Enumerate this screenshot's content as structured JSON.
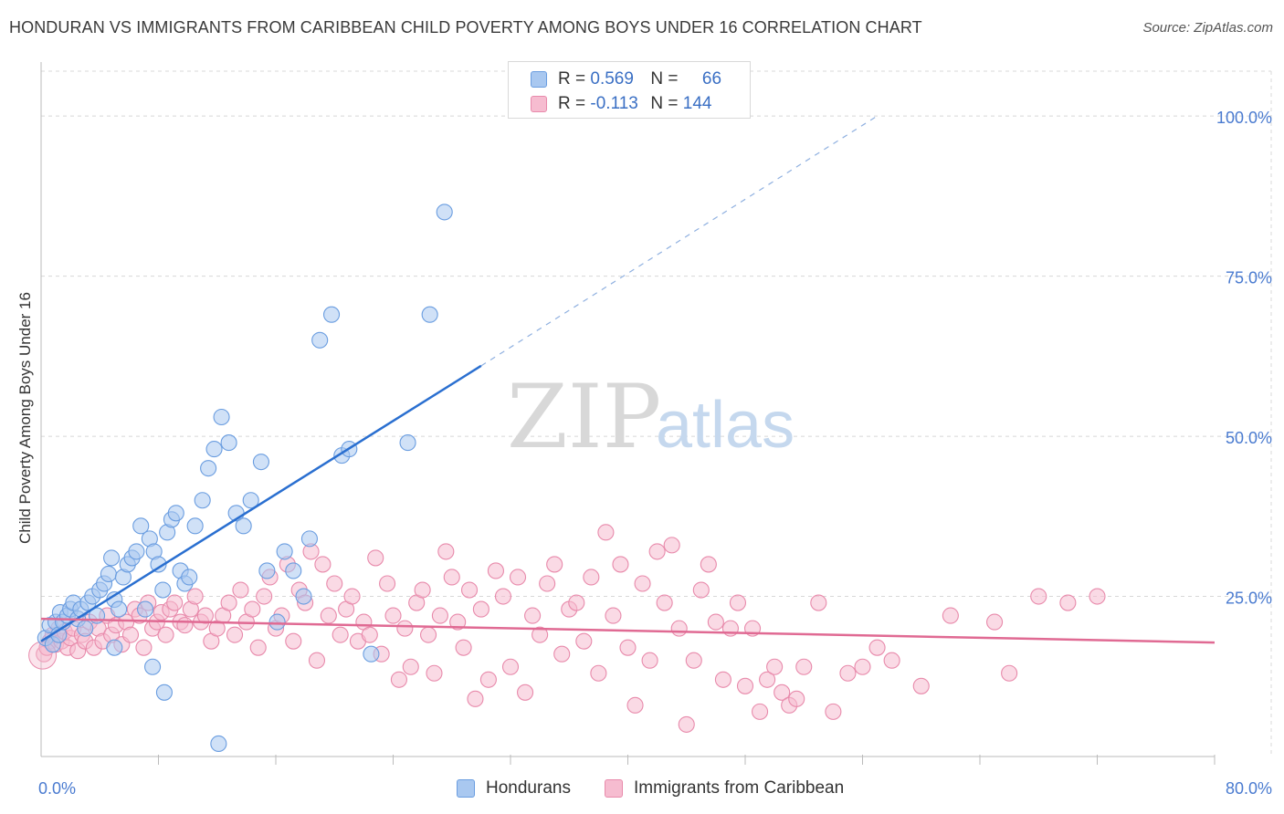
{
  "header": {
    "title": "HONDURAN VS IMMIGRANTS FROM CARIBBEAN CHILD POVERTY AMONG BOYS UNDER 16 CORRELATION CHART",
    "source": "Source: ZipAtlas.com"
  },
  "watermark": {
    "zip": "ZIP",
    "atlas": "atlas"
  },
  "legend": {
    "rows": [
      {
        "r_label": "R =",
        "r_value": "0.569",
        "n_label": "N =",
        "n_value": "66"
      },
      {
        "r_label": "R =",
        "r_value": "-0.113",
        "n_label": "N =",
        "n_value": "144"
      }
    ]
  },
  "bottom_legend": {
    "series_a": "Hondurans",
    "series_b": "Immigrants from Caribbean"
  },
  "colors": {
    "blue_fill": "#a9c8f0",
    "blue_stroke": "#6a9de0",
    "blue_line": "#2a6fd0",
    "pink_fill": "#f6bcd0",
    "pink_stroke": "#e88aab",
    "pink_line": "#e06a93",
    "axis_text": "#4a7bd0",
    "grid": "#d8d8d8"
  },
  "chart_data": {
    "type": "scatter",
    "title": "HONDURAN VS IMMIGRANTS FROM CARIBBEAN CHILD POVERTY AMONG BOYS UNDER 16 CORRELATION CHART",
    "xlabel": "",
    "ylabel": "Child Poverty Among Boys Under 16",
    "xlim": [
      0,
      80
    ],
    "ylim": [
      0,
      107
    ],
    "x_tick_labels": [
      "0.0%",
      "80.0%"
    ],
    "y_ticks": [
      25,
      50,
      75,
      100
    ],
    "y_tick_labels": [
      "25.0%",
      "50.0%",
      "75.0%",
      "100.0%"
    ],
    "grid": true,
    "legend_position": "top-center",
    "series": [
      {
        "name": "Hondurans",
        "R": 0.569,
        "N": 66,
        "trend": {
          "x0": 0,
          "y0": 18.0,
          "x1": 30,
          "y1": 61.0,
          "dashed_to_x": 57,
          "dashed_to_y": 100
        },
        "points": [
          [
            0.3,
            18.5
          ],
          [
            0.6,
            20.5
          ],
          [
            0.8,
            17.5
          ],
          [
            1.0,
            21
          ],
          [
            1.2,
            19
          ],
          [
            1.3,
            22.5
          ],
          [
            1.5,
            21
          ],
          [
            1.8,
            22
          ],
          [
            2.0,
            23
          ],
          [
            2.2,
            24
          ],
          [
            2.5,
            21.5
          ],
          [
            2.7,
            23
          ],
          [
            3.0,
            20
          ],
          [
            3.2,
            24
          ],
          [
            3.5,
            25
          ],
          [
            3.8,
            22
          ],
          [
            4.0,
            26
          ],
          [
            4.3,
            27
          ],
          [
            4.6,
            28.5
          ],
          [
            4.8,
            31
          ],
          [
            5.0,
            24.5
          ],
          [
            5.3,
            23
          ],
          [
            5.6,
            28
          ],
          [
            5.9,
            30
          ],
          [
            6.2,
            31
          ],
          [
            6.5,
            32
          ],
          [
            6.8,
            36
          ],
          [
            7.1,
            23
          ],
          [
            7.4,
            34
          ],
          [
            7.7,
            32
          ],
          [
            8.0,
            30
          ],
          [
            8.3,
            26
          ],
          [
            8.6,
            35
          ],
          [
            8.9,
            37
          ],
          [
            9.2,
            38
          ],
          [
            9.5,
            29
          ],
          [
            9.8,
            27
          ],
          [
            10.1,
            28
          ],
          [
            10.5,
            36
          ],
          [
            11.0,
            40
          ],
          [
            11.4,
            45
          ],
          [
            11.8,
            48
          ],
          [
            12.3,
            53
          ],
          [
            12.8,
            49
          ],
          [
            13.3,
            38
          ],
          [
            13.8,
            36
          ],
          [
            14.3,
            40
          ],
          [
            15.0,
            46
          ],
          [
            15.4,
            29
          ],
          [
            16.1,
            21
          ],
          [
            16.6,
            32
          ],
          [
            17.2,
            29
          ],
          [
            17.9,
            25
          ],
          [
            18.3,
            34
          ],
          [
            19.0,
            65
          ],
          [
            19.8,
            69
          ],
          [
            20.5,
            47
          ],
          [
            21.0,
            48
          ],
          [
            22.5,
            16
          ],
          [
            25.0,
            49
          ],
          [
            26.5,
            69
          ],
          [
            27.5,
            85
          ],
          [
            5.0,
            17
          ],
          [
            7.6,
            14
          ],
          [
            8.4,
            10
          ],
          [
            12.1,
            2
          ]
        ]
      },
      {
        "name": "Immigrants from Caribbean",
        "R": -0.113,
        "N": 144,
        "trend": {
          "x0": 0,
          "y0": 21.5,
          "x1": 80,
          "y1": 17.8
        },
        "points": [
          [
            0.2,
            16
          ],
          [
            0.4,
            17
          ],
          [
            0.6,
            18
          ],
          [
            0.8,
            19
          ],
          [
            1.0,
            17.5
          ],
          [
            1.2,
            20
          ],
          [
            1.4,
            18
          ],
          [
            1.6,
            19.5
          ],
          [
            1.8,
            17
          ],
          [
            2.0,
            18.5
          ],
          [
            2.2,
            20
          ],
          [
            2.5,
            16.5
          ],
          [
            2.8,
            19
          ],
          [
            3.0,
            18
          ],
          [
            3.3,
            21
          ],
          [
            3.6,
            17
          ],
          [
            3.9,
            20
          ],
          [
            4.2,
            18
          ],
          [
            4.5,
            22
          ],
          [
            4.8,
            19
          ],
          [
            5.1,
            20.5
          ],
          [
            5.5,
            17.5
          ],
          [
            5.8,
            21
          ],
          [
            6.1,
            19
          ],
          [
            6.4,
            23
          ],
          [
            6.7,
            22
          ],
          [
            7.0,
            17
          ],
          [
            7.3,
            24
          ],
          [
            7.6,
            20
          ],
          [
            7.9,
            21
          ],
          [
            8.2,
            22.5
          ],
          [
            8.5,
            19
          ],
          [
            8.8,
            23
          ],
          [
            9.1,
            24
          ],
          [
            9.5,
            21
          ],
          [
            9.8,
            20.5
          ],
          [
            10.2,
            23
          ],
          [
            10.5,
            25
          ],
          [
            10.9,
            21
          ],
          [
            11.2,
            22
          ],
          [
            11.6,
            18
          ],
          [
            12.0,
            20
          ],
          [
            12.4,
            22
          ],
          [
            12.8,
            24
          ],
          [
            13.2,
            19
          ],
          [
            13.6,
            26
          ],
          [
            14.0,
            21
          ],
          [
            14.4,
            23
          ],
          [
            14.8,
            17
          ],
          [
            15.2,
            25
          ],
          [
            15.6,
            28
          ],
          [
            16.0,
            20
          ],
          [
            16.4,
            22
          ],
          [
            16.8,
            30
          ],
          [
            17.2,
            18
          ],
          [
            17.6,
            26
          ],
          [
            18.0,
            24
          ],
          [
            18.4,
            32
          ],
          [
            18.8,
            15
          ],
          [
            19.2,
            30
          ],
          [
            19.6,
            22
          ],
          [
            20.0,
            27
          ],
          [
            20.4,
            19
          ],
          [
            20.8,
            23
          ],
          [
            21.2,
            25
          ],
          [
            21.6,
            18
          ],
          [
            22.0,
            21
          ],
          [
            22.4,
            19
          ],
          [
            22.8,
            31
          ],
          [
            23.2,
            16
          ],
          [
            23.6,
            27
          ],
          [
            24.0,
            22
          ],
          [
            24.4,
            12
          ],
          [
            24.8,
            20
          ],
          [
            25.2,
            14
          ],
          [
            25.6,
            24
          ],
          [
            26.0,
            26
          ],
          [
            26.4,
            19
          ],
          [
            26.8,
            13
          ],
          [
            27.2,
            22
          ],
          [
            27.6,
            32
          ],
          [
            28.0,
            28
          ],
          [
            28.4,
            21
          ],
          [
            28.8,
            17
          ],
          [
            29.2,
            26
          ],
          [
            29.6,
            9
          ],
          [
            30.0,
            23
          ],
          [
            30.5,
            12
          ],
          [
            31.0,
            29
          ],
          [
            31.5,
            25
          ],
          [
            32.0,
            14
          ],
          [
            32.5,
            28
          ],
          [
            33.0,
            10
          ],
          [
            33.5,
            22
          ],
          [
            34.0,
            19
          ],
          [
            34.5,
            27
          ],
          [
            35.0,
            30
          ],
          [
            35.5,
            16
          ],
          [
            36.0,
            23
          ],
          [
            36.5,
            24
          ],
          [
            37.0,
            18
          ],
          [
            37.5,
            28
          ],
          [
            38.0,
            13
          ],
          [
            38.5,
            35
          ],
          [
            39.0,
            22
          ],
          [
            39.5,
            30
          ],
          [
            40.0,
            17
          ],
          [
            40.5,
            8
          ],
          [
            41.0,
            27
          ],
          [
            41.5,
            15
          ],
          [
            42.0,
            32
          ],
          [
            42.5,
            24
          ],
          [
            43.0,
            33
          ],
          [
            43.5,
            20
          ],
          [
            44.0,
            5
          ],
          [
            44.5,
            15
          ],
          [
            45.0,
            26
          ],
          [
            45.5,
            30
          ],
          [
            46.0,
            21
          ],
          [
            46.5,
            12
          ],
          [
            47.0,
            20
          ],
          [
            47.5,
            24
          ],
          [
            48.0,
            11
          ],
          [
            48.5,
            20
          ],
          [
            49.0,
            7
          ],
          [
            49.5,
            12
          ],
          [
            50.0,
            14
          ],
          [
            50.5,
            10
          ],
          [
            51.0,
            8
          ],
          [
            51.5,
            9
          ],
          [
            52.0,
            14
          ],
          [
            53.0,
            24
          ],
          [
            54.0,
            7
          ],
          [
            55.0,
            13
          ],
          [
            56.0,
            14
          ],
          [
            57.0,
            17
          ],
          [
            58.0,
            15
          ],
          [
            60.0,
            11
          ],
          [
            62.0,
            22
          ],
          [
            65.0,
            21
          ],
          [
            66.0,
            13
          ],
          [
            68.0,
            25
          ],
          [
            70.0,
            24
          ],
          [
            72.0,
            25
          ]
        ]
      }
    ]
  }
}
